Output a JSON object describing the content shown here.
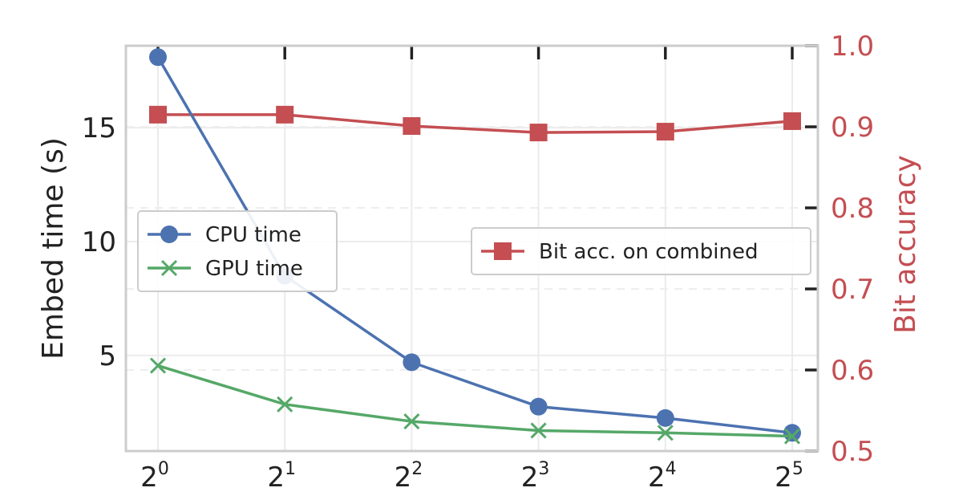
{
  "chart_data": {
    "type": "line",
    "x": [
      1,
      2,
      4,
      8,
      16,
      32
    ],
    "x_scale": "log2",
    "x_tick_labels": [
      {
        "base": "2",
        "exp": "0"
      },
      {
        "base": "2",
        "exp": "1"
      },
      {
        "base": "2",
        "exp": "2"
      },
      {
        "base": "2",
        "exp": "3"
      },
      {
        "base": "2",
        "exp": "4"
      },
      {
        "base": "2",
        "exp": "5"
      }
    ],
    "xlabel": "",
    "y_left": {
      "label": "Embed time (s)",
      "lim": [
        0.8,
        18.6
      ],
      "ticks": [
        5,
        10,
        15
      ],
      "tick_labels": [
        "5",
        "10",
        "15"
      ],
      "color": "#222222"
    },
    "y_right": {
      "label": "Bit accuracy",
      "lim": [
        0.5,
        1.0
      ],
      "ticks": [
        0.5,
        0.6,
        0.7,
        0.8,
        0.9,
        1.0
      ],
      "tick_labels": [
        "0.5",
        "0.6",
        "0.7",
        "0.8",
        "0.9",
        "1.0"
      ],
      "color": "#c44e52"
    },
    "series": [
      {
        "name": "CPU time",
        "axis": "left",
        "marker": "circle",
        "color": "#4c72b0",
        "values": [
          18.1,
          8.5,
          4.7,
          2.75,
          2.25,
          1.6
        ]
      },
      {
        "name": "GPU time",
        "axis": "left",
        "marker": "x",
        "color": "#55a868",
        "values": [
          4.55,
          2.85,
          2.1,
          1.7,
          1.6,
          1.45
        ]
      },
      {
        "name": "Bit acc. on combined",
        "axis": "right",
        "marker": "square",
        "color": "#c44e52",
        "values": [
          0.915,
          0.915,
          0.901,
          0.893,
          0.894,
          0.907
        ]
      }
    ],
    "legends": [
      {
        "placement": "center-left",
        "entries": [
          "CPU time",
          "GPU time"
        ]
      },
      {
        "placement": "center-right",
        "entries": [
          "Bit acc. on combined"
        ]
      }
    ],
    "grid": true
  }
}
